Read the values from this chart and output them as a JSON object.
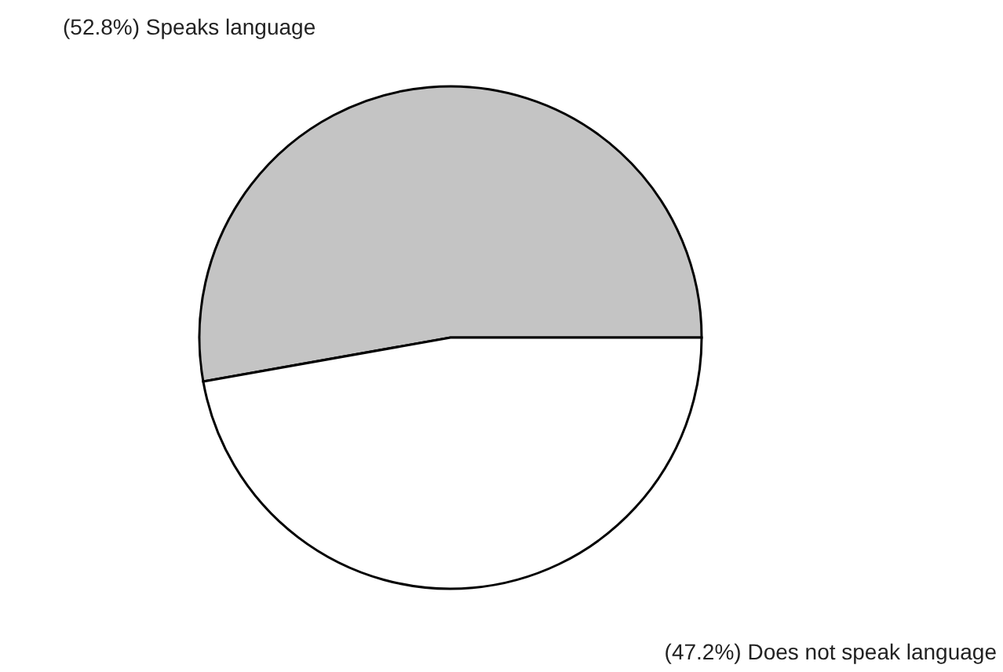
{
  "chart_data": {
    "type": "pie",
    "categories": [
      "Speaks language",
      "Does not speak language"
    ],
    "values": [
      52.8,
      47.2
    ],
    "value_labels": [
      "(52.8%)",
      "(47.2%)"
    ],
    "colors": [
      "#c4c4c4",
      "#ffffff"
    ],
    "legend": false
  }
}
